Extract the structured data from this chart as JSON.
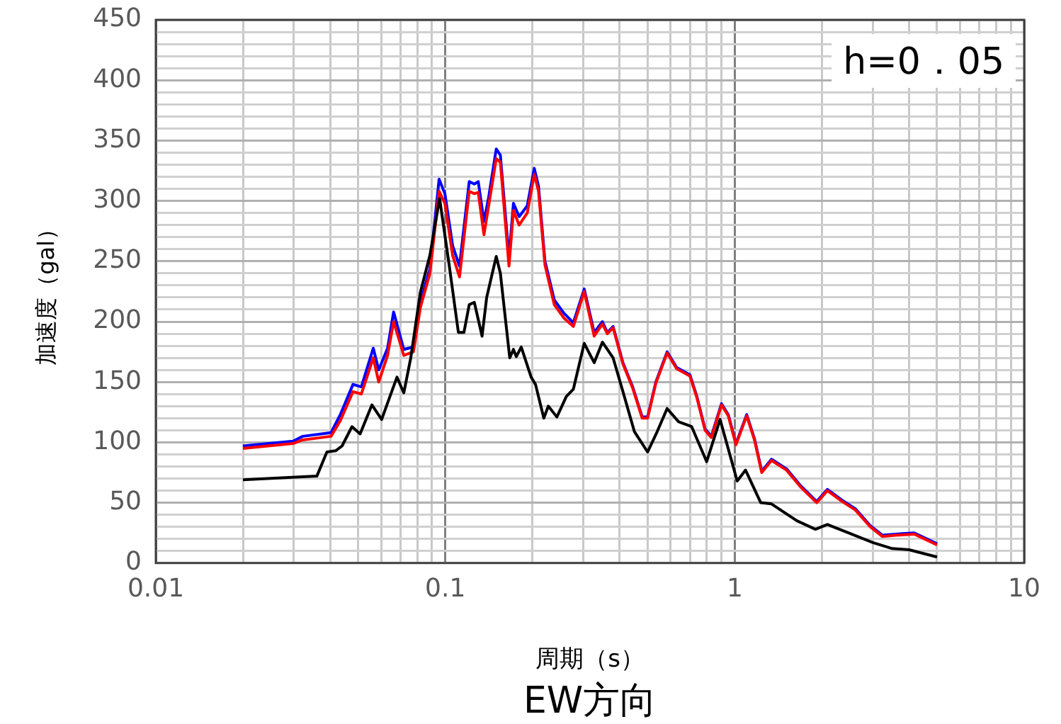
{
  "chart_data": {
    "type": "line",
    "title": "EW方向",
    "xlabel": "周期（s）",
    "ylabel": "加速度（gal）",
    "log": "x",
    "grid": true,
    "marker": "none",
    "annotations": [
      "h=0．05"
    ],
    "xlim": [
      0.01,
      10
    ],
    "ylim": [
      0,
      450
    ],
    "xticks": [
      0.01,
      {
        "value": 0.02,
        "label": null
      },
      {
        "value": 0.03,
        "label": null
      },
      {
        "value": 0.04,
        "label": null
      },
      {
        "value": 0.05,
        "label": null
      },
      {
        "value": 0.06,
        "label": null
      },
      {
        "value": 0.07,
        "label": null
      },
      {
        "value": 0.08,
        "label": null
      },
      {
        "value": 0.09,
        "label": null
      },
      0.1,
      {
        "value": 0.2,
        "label": null
      },
      {
        "value": 0.3,
        "label": null
      },
      {
        "value": 0.4,
        "label": null
      },
      {
        "value": 0.5,
        "label": null
      },
      {
        "value": 0.6,
        "label": null
      },
      {
        "value": 0.7,
        "label": null
      },
      {
        "value": 0.8,
        "label": null
      },
      {
        "value": 0.9,
        "label": null
      },
      1,
      {
        "value": 2,
        "label": null
      },
      {
        "value": 3,
        "label": null
      },
      {
        "value": 4,
        "label": null
      },
      {
        "value": 5,
        "label": null
      },
      {
        "value": 6,
        "label": null
      },
      {
        "value": 7,
        "label": null
      },
      {
        "value": 8,
        "label": null
      },
      {
        "value": 9,
        "label": null
      },
      10
    ],
    "yticks": [
      0,
      {
        "value": 10,
        "label": null
      },
      {
        "value": 20,
        "label": null
      },
      {
        "value": 30,
        "label": null
      },
      {
        "value": 40,
        "label": null
      },
      50,
      {
        "value": 60,
        "label": null
      },
      {
        "value": 70,
        "label": null
      },
      {
        "value": 80,
        "label": null
      },
      {
        "value": 90,
        "label": null
      },
      100,
      {
        "value": 110,
        "label": null
      },
      {
        "value": 120,
        "label": null
      },
      {
        "value": 130,
        "label": null
      },
      {
        "value": 140,
        "label": null
      },
      150,
      {
        "value": 160,
        "label": null
      },
      {
        "value": 170,
        "label": null
      },
      {
        "value": 180,
        "label": null
      },
      {
        "value": 190,
        "label": null
      },
      200,
      {
        "value": 210,
        "label": null
      },
      {
        "value": 220,
        "label": null
      },
      {
        "value": 230,
        "label": null
      },
      {
        "value": 240,
        "label": null
      },
      250,
      {
        "value": 260,
        "label": null
      },
      {
        "value": 270,
        "label": null
      },
      {
        "value": 280,
        "label": null
      },
      {
        "value": 290,
        "label": null
      },
      300,
      {
        "value": 310,
        "label": null
      },
      {
        "value": 320,
        "label": null
      },
      {
        "value": 330,
        "label": null
      },
      {
        "value": 340,
        "label": null
      },
      350,
      {
        "value": 360,
        "label": null
      },
      {
        "value": 370,
        "label": null
      },
      {
        "value": 380,
        "label": null
      },
      {
        "value": 390,
        "label": null
      },
      400,
      {
        "value": 410,
        "label": null
      },
      {
        "value": 420,
        "label": null
      },
      {
        "value": 430,
        "label": null
      },
      {
        "value": 440,
        "label": null
      },
      450
    ],
    "series": [
      {
        "color": "#000000",
        "x": [
          0.02,
          0.036,
          0.039,
          0.0418,
          0.044,
          0.0476,
          0.0508,
          0.0558,
          0.0603,
          0.0644,
          0.0681,
          0.0719,
          0.076,
          0.082,
          0.0885,
          0.0956,
          0.103,
          0.111,
          0.116,
          0.121,
          0.126,
          0.134,
          0.139,
          0.15,
          0.155,
          0.167,
          0.172,
          0.176,
          0.183,
          0.198,
          0.205,
          0.219,
          0.227,
          0.243,
          0.262,
          0.277,
          0.302,
          0.327,
          0.349,
          0.38,
          0.411,
          0.45,
          0.5,
          0.54,
          0.584,
          0.64,
          0.71,
          0.8,
          0.89,
          1.02,
          1.09,
          1.23,
          1.34,
          1.64,
          1.9,
          2.09,
          2.47,
          3.0,
          3.5,
          4.0,
          5.0
        ],
        "values": [
          69,
          72,
          92,
          93,
          97,
          113,
          107,
          131,
          119,
          138,
          154,
          141,
          170,
          224,
          255,
          302,
          248,
          191,
          191,
          214,
          216,
          188,
          220,
          254,
          240,
          170,
          177,
          171,
          179,
          154,
          148,
          120,
          130,
          121,
          138,
          144,
          182,
          166,
          183,
          170,
          142,
          109,
          92,
          109,
          128,
          117,
          113,
          84,
          119,
          68,
          77,
          50,
          49,
          35,
          28,
          32,
          25,
          17,
          12,
          11,
          5
        ]
      },
      {
        "color": "#ff0000",
        "x": [
          0.02,
          0.0298,
          0.0322,
          0.0403,
          0.0434,
          0.048,
          0.0513,
          0.0564,
          0.0589,
          0.0632,
          0.0663,
          0.0719,
          0.0776,
          0.0821,
          0.0885,
          0.0952,
          0.0997,
          0.106,
          0.112,
          0.121,
          0.126,
          0.13,
          0.136,
          0.141,
          0.15,
          0.155,
          0.166,
          0.172,
          0.18,
          0.192,
          0.203,
          0.21,
          0.221,
          0.238,
          0.257,
          0.277,
          0.302,
          0.327,
          0.349,
          0.363,
          0.38,
          0.411,
          0.444,
          0.479,
          0.5,
          0.534,
          0.584,
          0.63,
          0.7,
          0.74,
          0.79,
          0.83,
          0.9,
          0.95,
          1.01,
          1.1,
          1.17,
          1.24,
          1.34,
          1.51,
          1.69,
          1.92,
          2.09,
          2.35,
          2.61,
          2.94,
          3.24,
          3.6,
          4.17,
          5.0
        ],
        "values": [
          95,
          99,
          102,
          105,
          118,
          142,
          140,
          170,
          150,
          172,
          200,
          172,
          175,
          212,
          240,
          308,
          298,
          255,
          237,
          308,
          306,
          307,
          272,
          295,
          335,
          332,
          246,
          292,
          280,
          290,
          322,
          308,
          247,
          214,
          203,
          196,
          225,
          188,
          198,
          190,
          195,
          165,
          145,
          120,
          120,
          149,
          174,
          161,
          155,
          137,
          110,
          104,
          131,
          122,
          98,
          122,
          102,
          75,
          85,
          77,
          63,
          50,
          60,
          51,
          44,
          30,
          22,
          23,
          24,
          15
        ]
      },
      {
        "color": "#0000ff",
        "x": [
          0.02,
          0.0298,
          0.0322,
          0.0403,
          0.0434,
          0.048,
          0.0513,
          0.0564,
          0.0589,
          0.0632,
          0.0663,
          0.0719,
          0.0776,
          0.0821,
          0.0885,
          0.0952,
          0.0997,
          0.106,
          0.112,
          0.121,
          0.126,
          0.13,
          0.136,
          0.141,
          0.15,
          0.155,
          0.166,
          0.172,
          0.18,
          0.192,
          0.203,
          0.21,
          0.221,
          0.238,
          0.257,
          0.277,
          0.302,
          0.327,
          0.349,
          0.363,
          0.38,
          0.411,
          0.444,
          0.479,
          0.5,
          0.534,
          0.584,
          0.63,
          0.7,
          0.74,
          0.79,
          0.83,
          0.9,
          0.95,
          1.01,
          1.1,
          1.17,
          1.24,
          1.34,
          1.51,
          1.69,
          1.92,
          2.09,
          2.35,
          2.61,
          2.94,
          3.24,
          3.6,
          4.17,
          5.0
        ],
        "values": [
          97,
          101,
          105,
          108,
          123,
          148,
          146,
          178,
          160,
          178,
          208,
          177,
          179,
          216,
          244,
          318,
          306,
          263,
          246,
          316,
          314,
          316,
          283,
          302,
          343,
          338,
          253,
          298,
          287,
          296,
          327,
          312,
          250,
          218,
          207,
          199,
          227,
          191,
          200,
          191,
          196,
          166,
          146,
          121,
          121,
          150,
          175,
          162,
          156,
          138,
          111,
          105,
          132,
          123,
          99,
          123,
          103,
          76,
          86,
          78,
          64,
          51,
          61,
          52,
          45,
          31,
          23,
          24,
          25,
          16
        ]
      }
    ]
  }
}
